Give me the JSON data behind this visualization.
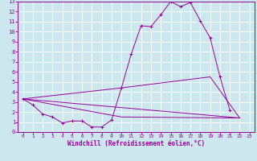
{
  "xlabel": "Windchill (Refroidissement éolien,°C)",
  "bg_color": "#cce8ee",
  "line_color": "#990099",
  "grid_color": "#ffffff",
  "xlim": [
    -0.5,
    23.5
  ],
  "ylim": [
    0,
    13
  ],
  "xticks": [
    0,
    1,
    2,
    3,
    4,
    5,
    6,
    7,
    8,
    9,
    10,
    11,
    12,
    13,
    14,
    15,
    16,
    17,
    18,
    19,
    20,
    21,
    22,
    23
  ],
  "yticks": [
    0,
    1,
    2,
    3,
    4,
    5,
    6,
    7,
    8,
    9,
    10,
    11,
    12,
    13
  ],
  "line1_x": [
    0,
    1,
    2,
    3,
    4,
    5,
    6,
    7,
    8,
    9,
    10,
    11,
    12,
    13,
    14,
    15,
    16,
    17,
    18,
    19,
    20,
    21
  ],
  "line1_y": [
    3.3,
    2.7,
    1.8,
    1.5,
    0.9,
    1.1,
    1.1,
    0.5,
    0.5,
    1.2,
    4.4,
    7.8,
    10.6,
    10.5,
    11.7,
    13.0,
    12.5,
    12.9,
    11.1,
    9.4,
    5.5,
    2.2
  ],
  "line2_x": [
    0,
    22
  ],
  "line2_y": [
    3.3,
    1.4
  ],
  "line3_x": [
    0,
    10,
    19,
    22
  ],
  "line3_y": [
    3.3,
    4.4,
    5.5,
    1.4
  ],
  "line4_x": [
    0,
    10,
    22
  ],
  "line4_y": [
    3.3,
    1.5,
    1.4
  ]
}
